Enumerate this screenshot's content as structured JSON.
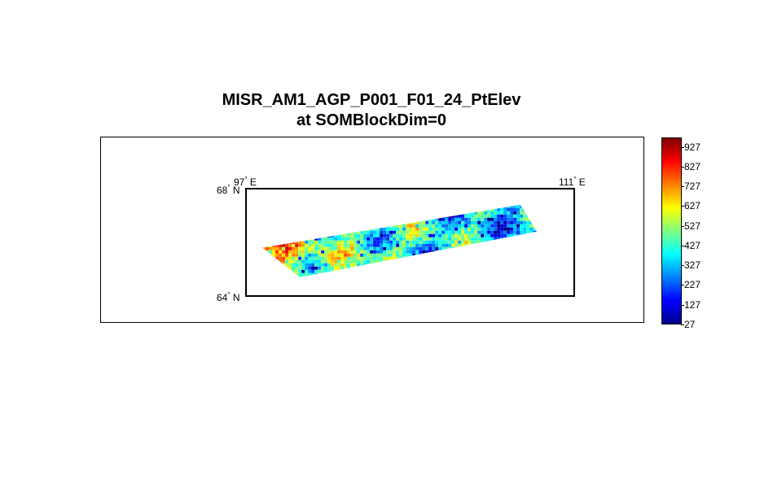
{
  "chart_data": {
    "type": "heatmap",
    "title": "MISR_AM1_AGP_P001_F01_24_PtElev",
    "subtitle": "at SOMBlockDim=0",
    "longitude_labels": [
      "97",
      "111"
    ],
    "longitude_suffix": "E",
    "latitude_labels": [
      "68",
      "64"
    ],
    "latitude_suffix": "N",
    "lon_range": [
      97,
      111
    ],
    "lat_range": [
      64,
      68
    ],
    "colormap": "jet",
    "colorbar": {
      "min": 27,
      "max": 975,
      "ticks": [
        "927",
        "827",
        "727",
        "627",
        "527",
        "427",
        "327",
        "227",
        "127",
        "27"
      ],
      "tick_values": [
        927,
        827,
        727,
        627,
        527,
        427,
        327,
        227,
        127,
        27
      ]
    },
    "swath_corners_lonlat": [
      [
        97.7,
        65.8
      ],
      [
        108.7,
        67.4
      ],
      [
        109.4,
        66.4
      ],
      [
        99.3,
        64.7
      ]
    ]
  }
}
